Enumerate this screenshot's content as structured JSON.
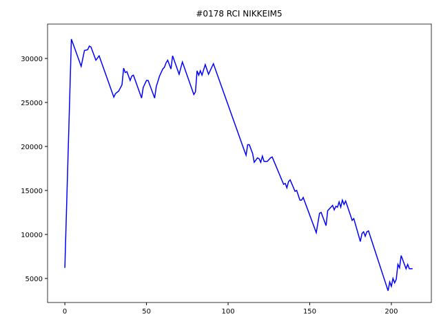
{
  "chart_data": {
    "type": "line",
    "title": "#0178 RCI NIKKEIM5",
    "x": [
      0,
      4,
      10,
      12,
      14,
      15,
      16,
      19,
      21,
      30,
      31,
      33,
      35,
      36,
      37,
      38,
      40,
      41,
      42,
      47,
      48,
      50,
      51,
      55,
      56,
      58,
      60,
      61,
      62,
      63,
      65,
      66,
      70,
      72,
      79,
      80,
      81,
      82,
      83,
      84,
      86,
      88,
      91,
      110,
      111,
      112,
      113,
      115,
      116,
      118,
      119,
      120,
      121,
      122,
      124,
      126,
      127,
      134,
      135,
      136,
      137,
      138,
      141,
      142,
      144,
      145,
      146,
      154,
      156,
      157,
      160,
      161,
      164,
      165,
      166,
      167,
      168,
      169,
      170,
      171,
      172,
      176,
      177,
      181,
      182,
      183,
      184,
      185,
      186,
      198,
      199,
      200,
      201,
      202,
      203,
      204,
      205,
      206,
      209,
      210,
      211,
      213
    ],
    "series": [
      {
        "color": "#0000ff",
        "values": [
          6200,
          32200,
          29100,
          30900,
          31000,
          31400,
          31300,
          29800,
          30300,
          25600,
          26000,
          26300,
          27000,
          28900,
          28400,
          28500,
          27500,
          28000,
          28100,
          25500,
          26700,
          27500,
          27500,
          25500,
          26800,
          28000,
          28800,
          29000,
          29500,
          29800,
          28800,
          30300,
          28200,
          29600,
          25900,
          26200,
          28600,
          28100,
          28600,
          28100,
          29300,
          28200,
          29400,
          19500,
          19000,
          20200,
          20200,
          19200,
          18200,
          18700,
          18600,
          18200,
          18900,
          18300,
          18300,
          18700,
          18800,
          15700,
          15800,
          15300,
          16000,
          16200,
          14900,
          15000,
          13900,
          13900,
          14200,
          10200,
          12400,
          12500,
          11000,
          12700,
          13300,
          12800,
          13200,
          13100,
          13700,
          13100,
          13900,
          13400,
          13800,
          11600,
          11800,
          9200,
          10100,
          10300,
          9800,
          10300,
          10400,
          3600,
          4600,
          4100,
          5000,
          4500,
          4900,
          6600,
          6200,
          7600,
          6100,
          6600,
          6100,
          6100
        ]
      }
    ],
    "xlim": [
      -10.6,
      224.5
    ],
    "ylim": [
      2266,
      33906
    ],
    "xticks": [
      0,
      50,
      100,
      150,
      200
    ],
    "yticks": [
      5000,
      10000,
      15000,
      20000,
      25000,
      30000
    ]
  }
}
